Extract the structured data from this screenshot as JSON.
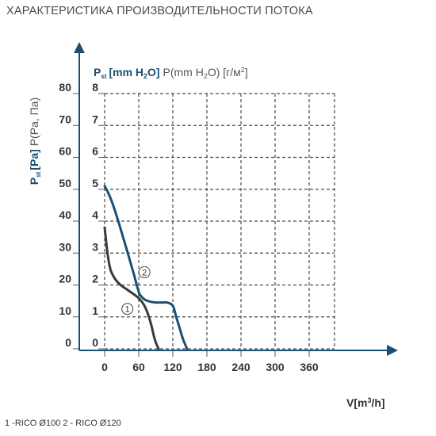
{
  "header": {
    "title": "ХАРАКТЕРИСТИКА ПРОИЗВОДИТЕЛЬНОСТИ ПОТОКА"
  },
  "legend": {
    "text": "1 -RICO Ø100   2 - RICO Ø120"
  },
  "colors": {
    "axis": "#1a4f73",
    "series_1": "#3a3a3a",
    "series_2": "#1a4f73"
  },
  "chart_data": {
    "type": "line",
    "ylabel_main": "P",
    "ylabel_sub": "st",
    "ylabel_unit": "[Pa]",
    "ylabel_rest": " P(Pa, Па)",
    "y2label_main": "P",
    "y2label_sub": "st",
    "y2label_unit": "[mm H",
    "y2label_unit_sub": "2",
    "y2label_unit_end": "O]",
    "y2label_rest": " P(mm H",
    "y2label_rest_sub": "2",
    "y2label_rest_end": "O) [г/м",
    "y2label_rest_sup": "2",
    "y2label_rest_close": "]",
    "xlabel_main": "V[m",
    "xlabel_sup": "3",
    "xlabel_end": "/h]",
    "xlim": [
      0,
      420
    ],
    "ylim": [
      0,
      80
    ],
    "x_ticks": [
      0,
      60,
      120,
      180,
      240,
      300,
      360
    ],
    "x_tick_labels": [
      "0",
      "60",
      "120",
      "180",
      "240",
      "300",
      "360"
    ],
    "y_ticks": [
      0,
      10,
      20,
      30,
      40,
      50,
      60,
      70,
      80
    ],
    "y_tick_labels": [
      "0",
      "10",
      "20",
      "30",
      "40",
      "50",
      "60",
      "70",
      "80"
    ],
    "y2_tick_labels": [
      "0",
      "1",
      "2",
      "3",
      "4",
      "5",
      "6",
      "7",
      "8"
    ],
    "grid": true,
    "series": [
      {
        "marker": "1",
        "x": [
          0,
          5,
          10,
          18,
          28,
          40,
          52,
          62,
          70,
          76,
          82,
          86,
          90,
          95
        ],
        "y": [
          38,
          30,
          25,
          22,
          20,
          18.5,
          17,
          15.5,
          13.5,
          11,
          7.5,
          4.5,
          2,
          0
        ]
      },
      {
        "marker": "2",
        "x": [
          0,
          6,
          14,
          24,
          34,
          44,
          52,
          58,
          62,
          70,
          80,
          90,
          100,
          110,
          120,
          126,
          132,
          138,
          145
        ],
        "y": [
          51,
          49,
          45.5,
          40,
          34,
          28,
          23,
          19,
          17,
          15.5,
          14.8,
          14.5,
          14.5,
          14.5,
          13.5,
          10,
          6.5,
          3,
          0
        ]
      }
    ]
  }
}
